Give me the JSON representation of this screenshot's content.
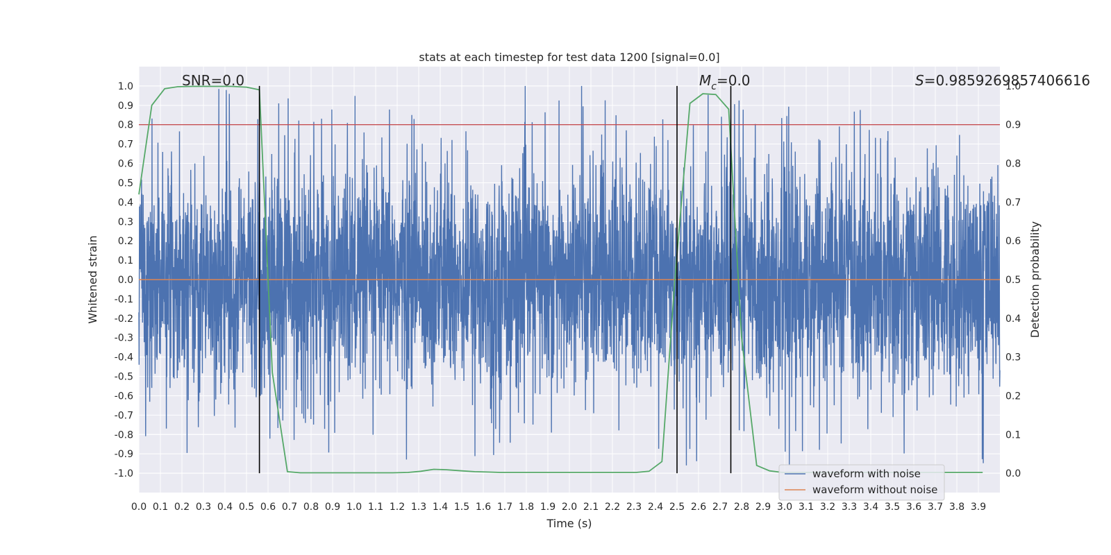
{
  "chart_data": {
    "type": "line",
    "title": "stats at each timestep for test data 1200 [signal=0.0]",
    "xlabel": "Time (s)",
    "ylabel": "Whitened strain",
    "y2label": "Detection probability",
    "xlim": [
      0.0,
      4.0
    ],
    "ylim": [
      -1.1,
      1.1
    ],
    "y2lim": [
      -0.05,
      1.05
    ],
    "x_ticks": [
      "0.0",
      "0.1",
      "0.2",
      "0.3",
      "0.4",
      "0.5",
      "0.6",
      "0.7",
      "0.8",
      "0.9",
      "1.0",
      "1.1",
      "1.2",
      "1.3",
      "1.4",
      "1.5",
      "1.6",
      "1.7",
      "1.8",
      "1.9",
      "2.0",
      "2.1",
      "2.2",
      "2.3",
      "2.4",
      "2.5",
      "2.6",
      "2.7",
      "2.8",
      "2.9",
      "3.0",
      "3.1",
      "3.2",
      "3.3",
      "3.4",
      "3.5",
      "3.6",
      "3.7",
      "3.8",
      "3.9"
    ],
    "y_ticks": [
      "1.0",
      "0.9",
      "0.8",
      "0.7",
      "0.6",
      "0.5",
      "0.4",
      "0.3",
      "0.2",
      "0.1",
      "0.0",
      "-0.1",
      "-0.2",
      "-0.3",
      "-0.4",
      "-0.5",
      "-0.6",
      "-0.7",
      "-0.8",
      "-0.9",
      "-1.0"
    ],
    "y2_ticks": [
      "1.0",
      "0.9",
      "0.8",
      "0.7",
      "0.6",
      "0.5",
      "0.4",
      "0.3",
      "0.2",
      "0.1",
      "0.0"
    ],
    "grid": true,
    "legend_position": "lower-right",
    "legend": [
      {
        "label": "waveform with noise",
        "color": "#4c72b0"
      },
      {
        "label": "waveform without noise",
        "color": "#dd8452"
      }
    ],
    "annotations": [
      {
        "text": "SNR=0.0"
      },
      {
        "text_var": "M",
        "text_sub": "c",
        "text_rest": "=0.0"
      },
      {
        "text_var": "S",
        "text_rest": "=0.9859269857406616"
      }
    ],
    "noise_series": {
      "name": "waveform with noise",
      "color": "#4c72b0",
      "x_range": [
        0.0,
        4.0
      ],
      "amplitude_range": [
        -0.96,
        1.0
      ],
      "seed": 1200
    },
    "clean_series": {
      "name": "waveform without noise",
      "color": "#dd8452",
      "y": 0.0
    },
    "detection_probability": {
      "color": "#55a868",
      "x": [
        0.0,
        0.06,
        0.12,
        0.18,
        0.25,
        0.31,
        0.37,
        0.43,
        0.5,
        0.56,
        0.62,
        0.69,
        0.75,
        0.81,
        0.87,
        0.93,
        1.0,
        1.06,
        1.12,
        1.18,
        1.25,
        1.31,
        1.37,
        1.43,
        1.5,
        1.56,
        1.62,
        1.68,
        1.75,
        1.81,
        1.87,
        1.93,
        2.0,
        2.06,
        2.12,
        2.18,
        2.24,
        2.31,
        2.37,
        2.43,
        2.49,
        2.56,
        2.62,
        2.68,
        2.74,
        2.8,
        2.87,
        2.93,
        2.99,
        3.05,
        3.11,
        3.18,
        3.24,
        3.3,
        3.36,
        3.42,
        3.49,
        3.55,
        3.61,
        3.67,
        3.73,
        3.8,
        3.86,
        3.92
      ],
      "y": [
        0.72,
        0.95,
        0.993,
        0.998,
        0.999,
        0.999,
        0.999,
        0.999,
        0.997,
        0.99,
        0.26,
        0.004,
        0.001,
        0.001,
        0.001,
        0.001,
        0.001,
        0.001,
        0.001,
        0.001,
        0.002,
        0.005,
        0.01,
        0.009,
        0.006,
        0.004,
        0.003,
        0.002,
        0.002,
        0.002,
        0.002,
        0.002,
        0.002,
        0.002,
        0.002,
        0.002,
        0.002,
        0.002,
        0.005,
        0.03,
        0.5,
        0.955,
        0.98,
        0.978,
        0.94,
        0.35,
        0.02,
        0.006,
        0.002,
        0.002,
        0.002,
        0.002,
        0.002,
        0.002,
        0.002,
        0.002,
        0.002,
        0.002,
        0.002,
        0.002,
        0.002,
        0.002,
        0.002,
        0.002
      ]
    },
    "threshold": {
      "y2": 0.9,
      "color": "#c44e52"
    },
    "event_lines": [
      0.56,
      2.5,
      2.75
    ],
    "event_line_color": "#000000"
  }
}
